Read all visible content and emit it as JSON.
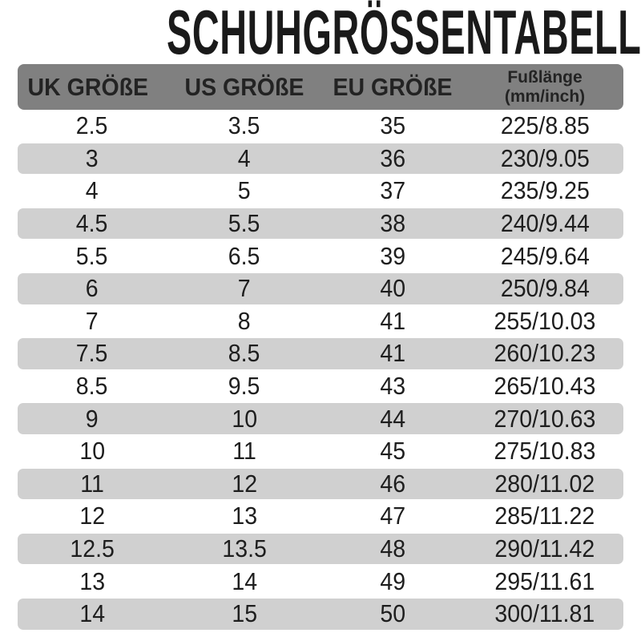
{
  "title": "SCHUHGRÖSSENTABELLE",
  "colors": {
    "header_bg": "#808080",
    "alt_row_bg": "#d0d0d0",
    "text": "#1e1e1e"
  },
  "headers": [
    "UK GRÖßE",
    "US GRÖßE",
    "EU GRÖßE"
  ],
  "foot_length_header": {
    "line1": "Fußlänge",
    "line2": "(mm/inch)"
  },
  "rows": [
    [
      "2.5",
      "3.5",
      "35",
      "225/8.85"
    ],
    [
      "3",
      "4",
      "36",
      "230/9.05"
    ],
    [
      "4",
      "5",
      "37",
      "235/9.25"
    ],
    [
      "4.5",
      "5.5",
      "38",
      "240/9.44"
    ],
    [
      "5.5",
      "6.5",
      "39",
      "245/9.64"
    ],
    [
      "6",
      "7",
      "40",
      "250/9.84"
    ],
    [
      "7",
      "8",
      "41",
      "255/10.03"
    ],
    [
      "7.5",
      "8.5",
      "41",
      "260/10.23"
    ],
    [
      "8.5",
      "9.5",
      "43",
      "265/10.43"
    ],
    [
      "9",
      "10",
      "44",
      "270/10.63"
    ],
    [
      "10",
      "11",
      "45",
      "275/10.83"
    ],
    [
      "11",
      "12",
      "46",
      "280/11.02"
    ],
    [
      "12",
      "13",
      "47",
      "285/11.22"
    ],
    [
      "12.5",
      "13.5",
      "48",
      "290/11.42"
    ],
    [
      "13",
      "14",
      "49",
      "295/11.61"
    ],
    [
      "14",
      "15",
      "50",
      "300/11.81"
    ]
  ]
}
